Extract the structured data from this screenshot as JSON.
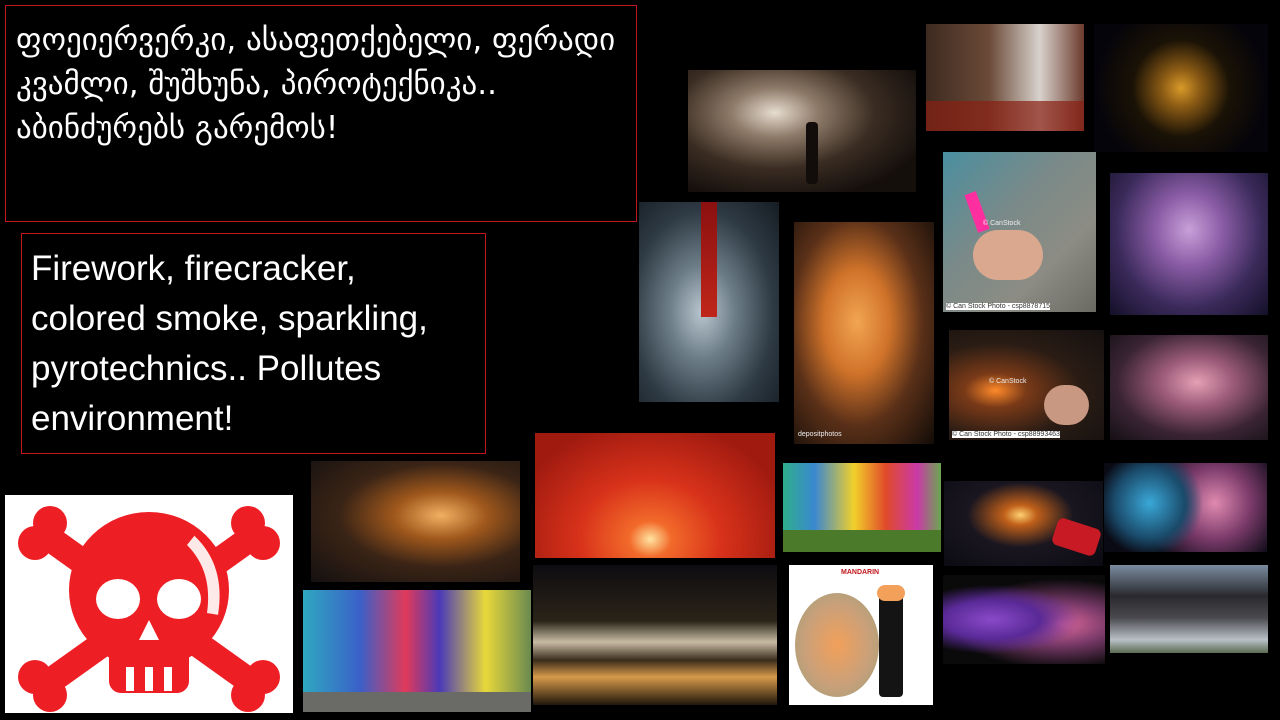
{
  "slide": {
    "text_georgian": "ფოეიერვერკი, ასაფეთქებელი, ფერადი კვამლი, შუშხუნა, პიროტექნიკა.. აბინძურებს გარემოს!",
    "text_english": "Firework, firecracker, colored smoke, sparkling, pyrotechnics.. Pollutes environment!"
  },
  "watermarks": {
    "canstock_1": "© CanStock",
    "canstock_footer_1": "© Can Stock Photo - csp8878715",
    "canstock_2": "© CanStock",
    "canstock_footer_2": "© Can Stock Photo - csp88993463",
    "depositphotos": "depositphotos",
    "mandarin": "MANDARIN"
  },
  "colors": {
    "accent_red": "#c0161c",
    "skull_red": "#ee1f24"
  },
  "icons": {
    "poison": "skull-and-crossbones-icon"
  }
}
